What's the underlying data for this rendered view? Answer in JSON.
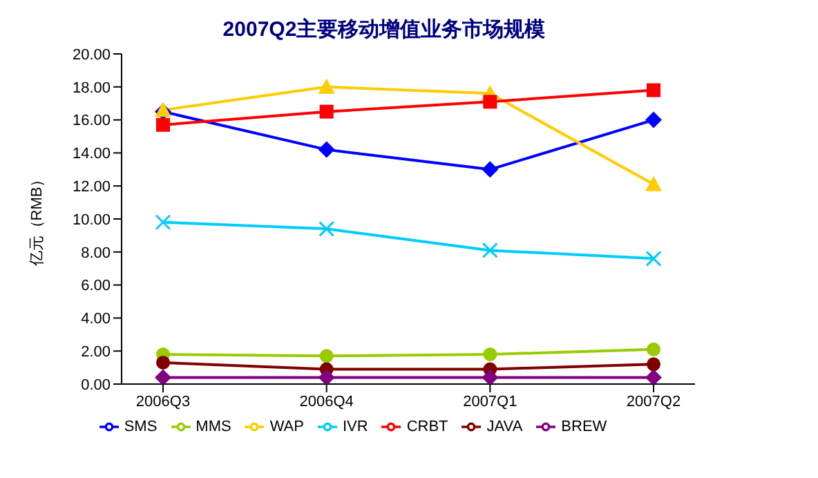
{
  "chart_data": {
    "type": "line",
    "title": "2007Q2主要移动增值业务市场规模",
    "ylabel": "亿元（RMB）",
    "categories": [
      "2006Q3",
      "2006Q4",
      "2007Q1",
      "2007Q2"
    ],
    "series": [
      {
        "name": "SMS",
        "color": "#0000ff",
        "marker": "diamond",
        "values": [
          16.5,
          14.2,
          13.0,
          16.0
        ]
      },
      {
        "name": "MMS",
        "color": "#99cc00",
        "marker": "circle",
        "values": [
          1.8,
          1.7,
          1.8,
          2.1
        ]
      },
      {
        "name": "WAP",
        "color": "#ffcc00",
        "marker": "triangle",
        "values": [
          16.6,
          18.0,
          17.6,
          12.1
        ]
      },
      {
        "name": "IVR",
        "color": "#00ccff",
        "marker": "cross",
        "values": [
          9.8,
          9.4,
          8.1,
          7.6
        ]
      },
      {
        "name": "CRBT",
        "color": "#ff0000",
        "marker": "square",
        "values": [
          15.7,
          16.5,
          17.1,
          17.8
        ]
      },
      {
        "name": "JAVA",
        "color": "#800000",
        "marker": "circle",
        "values": [
          1.3,
          0.9,
          0.9,
          1.2
        ]
      },
      {
        "name": "BREW",
        "color": "#800080",
        "marker": "diamond",
        "values": [
          0.4,
          0.4,
          0.4,
          0.4
        ]
      }
    ],
    "ylim": [
      0,
      20
    ],
    "yticks": [
      {
        "value": 0,
        "label": "0.00"
      },
      {
        "value": 2,
        "label": "2.00"
      },
      {
        "value": 4,
        "label": "4.00"
      },
      {
        "value": 6,
        "label": "6.00"
      },
      {
        "value": 8,
        "label": "8.00"
      },
      {
        "value": 10,
        "label": "10.00"
      },
      {
        "value": 12,
        "label": "12.00"
      },
      {
        "value": 14,
        "label": "14.00"
      },
      {
        "value": 16,
        "label": "16.00"
      },
      {
        "value": 18,
        "label": "18.00"
      },
      {
        "value": 20,
        "label": "20.00"
      }
    ],
    "grid": false,
    "legend": "bottom"
  }
}
